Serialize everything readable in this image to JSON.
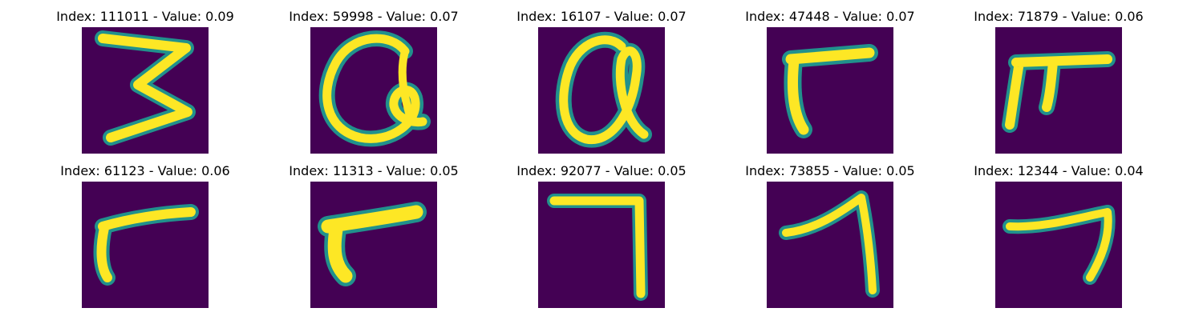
{
  "figure": {
    "colormap": "viridis",
    "background_color": "#440154",
    "stroke_color_core": "#fde725",
    "stroke_color_edge": "#21918c",
    "panels": [
      {
        "title": "Index: 111011 - Value: 0.09",
        "index": "111011",
        "value": "0.09",
        "glyph": "3"
      },
      {
        "title": "Index: 59998 - Value: 0.07",
        "index": "59998",
        "value": "0.07",
        "glyph": "Q-loop"
      },
      {
        "title": "Index: 16107 - Value: 0.07",
        "index": "16107",
        "value": "0.07",
        "glyph": "alpha-loop"
      },
      {
        "title": "Index: 47448 - Value: 0.07",
        "index": "47448",
        "value": "0.07",
        "glyph": "r-hook"
      },
      {
        "title": "Index: 71879 - Value: 0.06",
        "index": "71879",
        "value": "0.06",
        "glyph": "pi-shape"
      },
      {
        "title": "Index: 61123 - Value: 0.06",
        "index": "61123",
        "value": "0.06",
        "glyph": "r-hook"
      },
      {
        "title": "Index: 11313 - Value: 0.05",
        "index": "11313",
        "value": "0.05",
        "glyph": "r-hook-thick"
      },
      {
        "title": "Index: 92077 - Value: 0.05",
        "index": "92077",
        "value": "0.05",
        "glyph": "7-square"
      },
      {
        "title": "Index: 73855 - Value: 0.05",
        "index": "73855",
        "value": "0.05",
        "glyph": "7-slant"
      },
      {
        "title": "Index: 12344 - Value: 0.04",
        "index": "12344",
        "value": "0.04",
        "glyph": "7-short"
      }
    ]
  }
}
